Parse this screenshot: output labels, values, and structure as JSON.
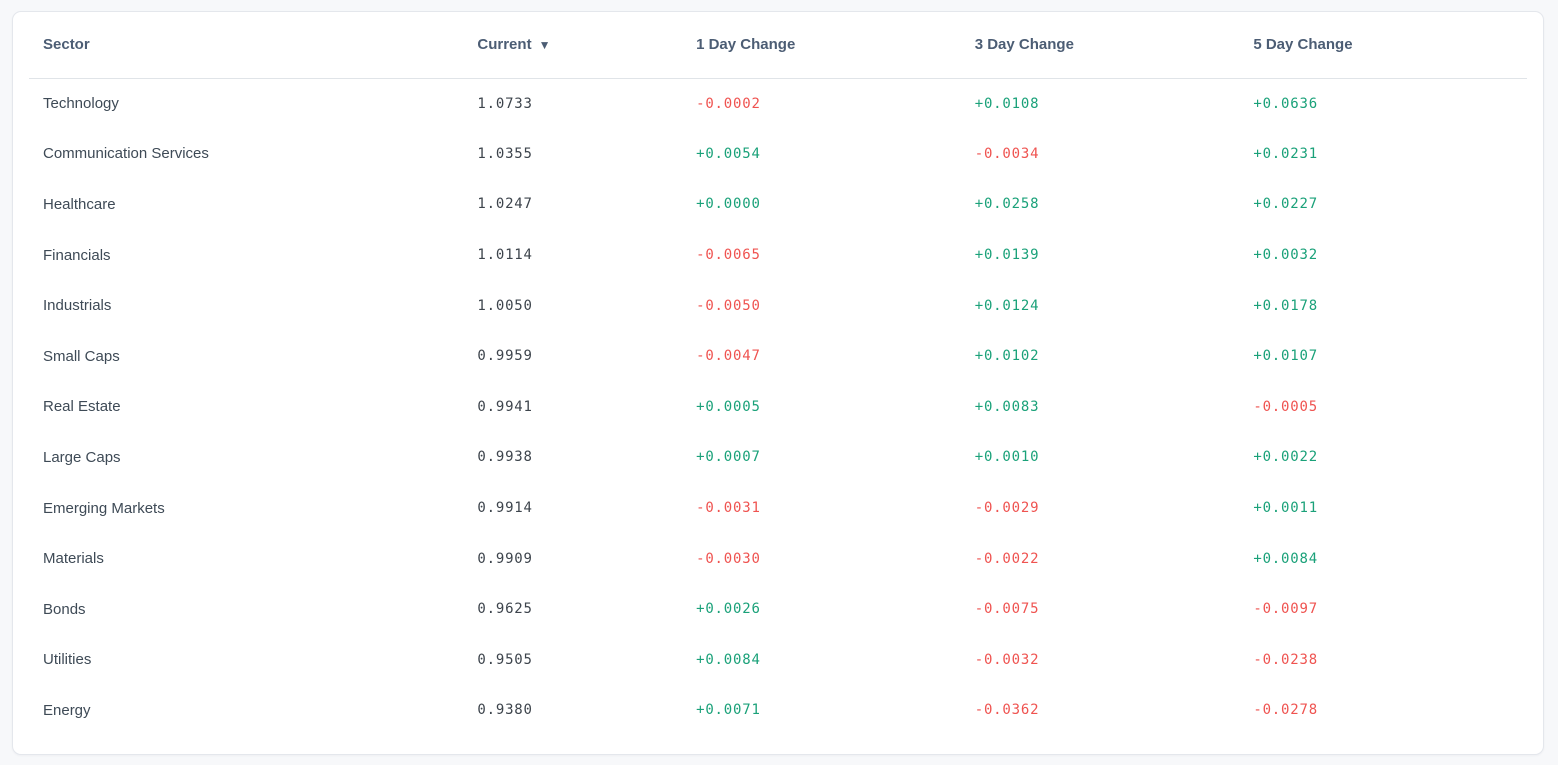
{
  "colors": {
    "positive": "#1aa179",
    "negative": "#ef5350",
    "header": "#4c5d74"
  },
  "table": {
    "sort_icon": "▼",
    "sorted_column": "Current",
    "sort_direction": "descending",
    "columns": [
      {
        "key": "sector",
        "label": "Sector"
      },
      {
        "key": "current",
        "label": "Current"
      },
      {
        "key": "d1",
        "label": "1 Day Change"
      },
      {
        "key": "d3",
        "label": "3 Day Change"
      },
      {
        "key": "d5",
        "label": "5 Day Change"
      }
    ],
    "rows": [
      {
        "sector": "Technology",
        "current": "1.0733",
        "d1": "-0.0002",
        "d3": "+0.0108",
        "d5": "+0.0636"
      },
      {
        "sector": "Communication Services",
        "current": "1.0355",
        "d1": "+0.0054",
        "d3": "-0.0034",
        "d5": "+0.0231"
      },
      {
        "sector": "Healthcare",
        "current": "1.0247",
        "d1": "+0.0000",
        "d3": "+0.0258",
        "d5": "+0.0227"
      },
      {
        "sector": "Financials",
        "current": "1.0114",
        "d1": "-0.0065",
        "d3": "+0.0139",
        "d5": "+0.0032"
      },
      {
        "sector": "Industrials",
        "current": "1.0050",
        "d1": "-0.0050",
        "d3": "+0.0124",
        "d5": "+0.0178"
      },
      {
        "sector": "Small Caps",
        "current": "0.9959",
        "d1": "-0.0047",
        "d3": "+0.0102",
        "d5": "+0.0107"
      },
      {
        "sector": "Real Estate",
        "current": "0.9941",
        "d1": "+0.0005",
        "d3": "+0.0083",
        "d5": "-0.0005"
      },
      {
        "sector": "Large Caps",
        "current": "0.9938",
        "d1": "+0.0007",
        "d3": "+0.0010",
        "d5": "+0.0022"
      },
      {
        "sector": "Emerging Markets",
        "current": "0.9914",
        "d1": "-0.0031",
        "d3": "-0.0029",
        "d5": "+0.0011"
      },
      {
        "sector": "Materials",
        "current": "0.9909",
        "d1": "-0.0030",
        "d3": "-0.0022",
        "d5": "+0.0084"
      },
      {
        "sector": "Bonds",
        "current": "0.9625",
        "d1": "+0.0026",
        "d3": "-0.0075",
        "d5": "-0.0097"
      },
      {
        "sector": "Utilities",
        "current": "0.9505",
        "d1": "+0.0084",
        "d3": "-0.0032",
        "d5": "-0.0238"
      },
      {
        "sector": "Energy",
        "current": "0.9380",
        "d1": "+0.0071",
        "d3": "-0.0362",
        "d5": "-0.0278"
      }
    ]
  }
}
